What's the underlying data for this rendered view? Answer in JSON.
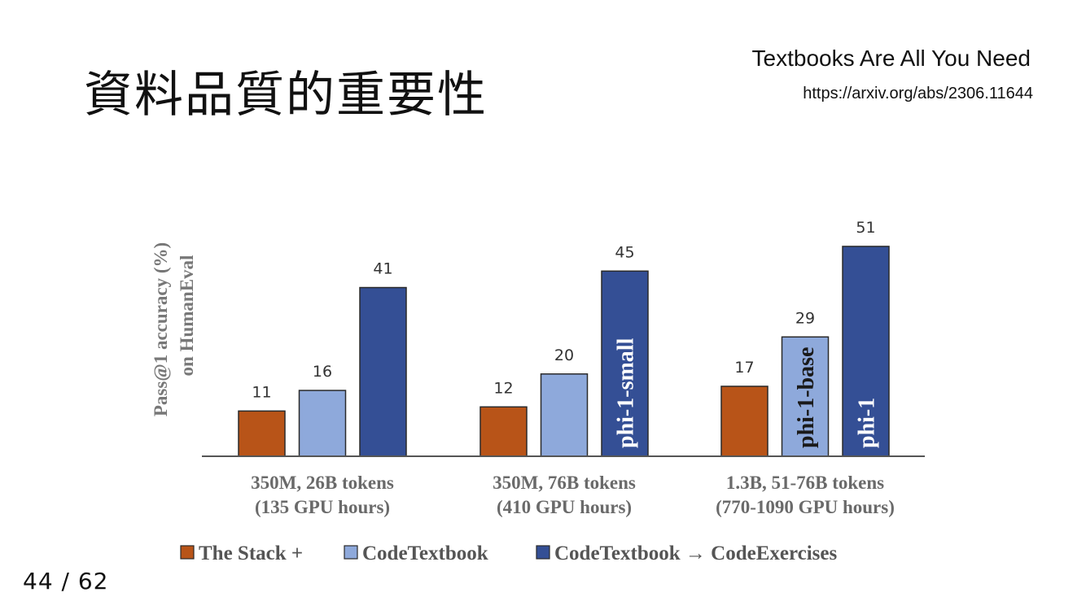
{
  "slide": {
    "title": "資料品質的重要性",
    "reference_title": "Textbooks Are All You Need",
    "reference_url": "https://arxiv.org/abs/2306.11644",
    "page_number": "44 / 62"
  },
  "colors": {
    "the_stack": "#B85418",
    "codetextbook": "#8EA9DB",
    "codetextbook_exercises": "#344F95"
  },
  "chart_data": {
    "type": "bar",
    "title": "",
    "ylabel": [
      "Pass@1 accuracy (%)",
      "on HumanEval"
    ],
    "ylim": [
      0,
      55
    ],
    "grid": false,
    "legend_position": "bottom",
    "categories": [
      [
        "350M, 26B tokens",
        "(135 GPU hours)"
      ],
      [
        "350M, 76B tokens",
        "(410 GPU hours)"
      ],
      [
        "1.3B, 51-76B tokens",
        "(770-1090 GPU hours)"
      ]
    ],
    "series": [
      {
        "name": "The Stack +",
        "values": [
          11,
          12,
          17
        ],
        "bar_labels": [
          "",
          "",
          ""
        ]
      },
      {
        "name": "CodeTextbook",
        "values": [
          16,
          20,
          29
        ],
        "bar_labels": [
          "",
          "",
          "phi-1-base"
        ]
      },
      {
        "name": "CodeTextbook → CodeExercises",
        "values": [
          41,
          45,
          51
        ],
        "bar_labels": [
          "",
          "phi-1-small",
          "phi-1"
        ]
      }
    ]
  }
}
